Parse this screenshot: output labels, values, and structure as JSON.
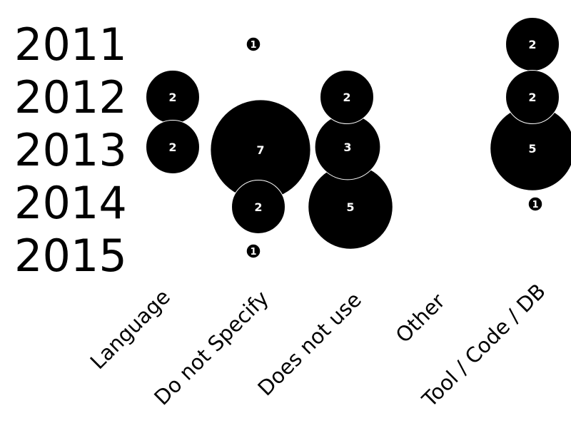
{
  "chart_data": {
    "type": "scatter",
    "subtype": "bubble",
    "title": "",
    "xlabel": "",
    "ylabel": "",
    "categories": [
      "Language",
      "Do not Specify",
      "Does not use",
      "Other",
      "Tool / Code / DB"
    ],
    "years": [
      "2011",
      "2012",
      "2013",
      "2014",
      "2015"
    ],
    "bubble_color": "#000000",
    "label_color": "#ffffff",
    "points": [
      {
        "category": "Language",
        "year": "2012",
        "value": 2
      },
      {
        "category": "Language",
        "year": "2013",
        "value": 2
      },
      {
        "category": "Do not Specify",
        "year": "2011",
        "value": 1
      },
      {
        "category": "Do not Specify",
        "year": "2013",
        "value": 7
      },
      {
        "category": "Do not Specify",
        "year": "2014",
        "value": 2
      },
      {
        "category": "Do not Specify",
        "year": "2015",
        "value": 1
      },
      {
        "category": "Does not use",
        "year": "2012",
        "value": 2
      },
      {
        "category": "Does not use",
        "year": "2013",
        "value": 3
      },
      {
        "category": "Does not use",
        "year": "2014",
        "value": 5
      },
      {
        "category": "Tool / Code / DB",
        "year": "2011",
        "value": 2
      },
      {
        "category": "Tool / Code / DB",
        "year": "2012",
        "value": 2
      },
      {
        "category": "Tool / Code / DB",
        "year": "2013",
        "value": 5
      },
      {
        "category": "Tool / Code / DB",
        "year": "2014",
        "value": 1
      }
    ]
  }
}
